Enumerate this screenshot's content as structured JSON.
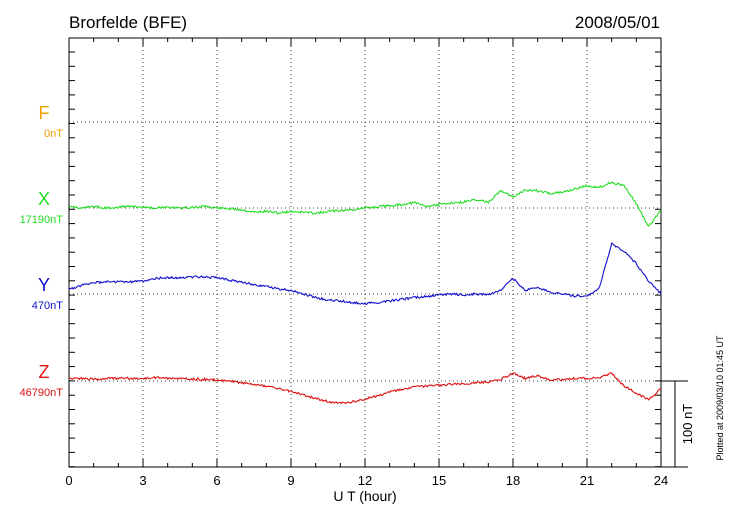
{
  "header": {
    "station": "Brorfelde (BFE)",
    "date": "2008/05/01"
  },
  "side_note": "Plotted at 2009/03/10 01:45 UT",
  "scale_bar_label": "100 nT",
  "chart_data": {
    "type": "line",
    "xlabel": "U T (hour)",
    "xlim": [
      0,
      24
    ],
    "x_ticks": [
      "0",
      "3",
      "6",
      "9",
      "12",
      "15",
      "18",
      "21",
      "24"
    ],
    "scale_nT": 100,
    "colors": {
      "F": "#f0a000",
      "X": "#22dd22",
      "Y": "#1010cc",
      "Z": "#dd1111"
    },
    "series": [
      {
        "name": "F",
        "baseline_label": "0nT",
        "baseline": 0,
        "x": [],
        "values": []
      },
      {
        "name": "X",
        "baseline_label": "17190nT",
        "baseline": 17190,
        "x": [
          0,
          0.5,
          1,
          1.5,
          2,
          2.5,
          3,
          3.5,
          4,
          4.5,
          5,
          5.5,
          6,
          6.5,
          7,
          7.5,
          8,
          8.5,
          9,
          9.5,
          10,
          10.5,
          11,
          11.5,
          12,
          12.5,
          13,
          13.5,
          14,
          14.5,
          15,
          15.5,
          16,
          16.5,
          17,
          17.5,
          18,
          18.5,
          19,
          19.5,
          20,
          20.5,
          21,
          21.5,
          22,
          22.5,
          23,
          23.5,
          24
        ],
        "values": [
          17191,
          17190,
          17192,
          17190,
          17191,
          17192,
          17191,
          17190,
          17191,
          17190,
          17191,
          17192,
          17190,
          17189,
          17188,
          17185,
          17186,
          17184,
          17186,
          17185,
          17184,
          17186,
          17187,
          17188,
          17190,
          17191,
          17193,
          17194,
          17196,
          17192,
          17194,
          17196,
          17197,
          17200,
          17197,
          17210,
          17203,
          17211,
          17210,
          17207,
          17208,
          17212,
          17216,
          17214,
          17220,
          17216,
          17195,
          17168,
          17188
        ]
      },
      {
        "name": "Y",
        "baseline_label": "470nT",
        "baseline": 470,
        "x": [
          0,
          0.5,
          1,
          1.5,
          2,
          2.5,
          3,
          3.5,
          4,
          4.5,
          5,
          5.5,
          6,
          6.5,
          7,
          7.5,
          8,
          8.5,
          9,
          9.5,
          10,
          10.5,
          11,
          11.5,
          12,
          12.5,
          13,
          13.5,
          14,
          14.5,
          15,
          15.5,
          16,
          16.5,
          17,
          17.5,
          18,
          18.5,
          19,
          19.5,
          20,
          20.5,
          21,
          21.5,
          22,
          22.5,
          23,
          23.5,
          24
        ],
        "values": [
          475,
          480,
          483,
          484,
          484,
          484,
          485,
          488,
          489,
          489,
          490,
          490,
          489,
          486,
          484,
          481,
          479,
          476,
          474,
          470,
          466,
          463,
          462,
          460,
          459,
          460,
          462,
          464,
          466,
          467,
          469,
          470,
          469,
          470,
          469,
          475,
          488,
          474,
          478,
          472,
          470,
          468,
          467,
          477,
          528,
          520,
          505,
          485,
          470
        ]
      },
      {
        "name": "Z",
        "baseline_label": "46790nT",
        "baseline": 46790,
        "x": [
          0,
          0.5,
          1,
          1.5,
          2,
          2.5,
          3,
          3.5,
          4,
          4.5,
          5,
          5.5,
          6,
          6.5,
          7,
          7.5,
          8,
          8.5,
          9,
          9.5,
          10,
          10.5,
          11,
          11.5,
          12,
          12.5,
          13,
          13.5,
          14,
          14.5,
          15,
          15.5,
          16,
          16.5,
          17,
          17.5,
          18,
          18.5,
          19,
          19.5,
          20,
          20.5,
          21,
          21.5,
          22,
          22.5,
          23,
          23.5,
          24
        ],
        "values": [
          46793,
          46793,
          46792,
          46793,
          46793,
          46793,
          46793,
          46794,
          46793,
          46793,
          46792,
          46792,
          46791,
          46790,
          46788,
          46786,
          46784,
          46781,
          46778,
          46774,
          46770,
          46766,
          46764,
          46766,
          46769,
          46773,
          46777,
          46780,
          46783,
          46784,
          46785,
          46786,
          46787,
          46788,
          46789,
          46792,
          46799,
          46793,
          46796,
          46791,
          46792,
          46793,
          46793,
          46794,
          46799,
          46784,
          46776,
          46768,
          46782
        ]
      }
    ]
  }
}
